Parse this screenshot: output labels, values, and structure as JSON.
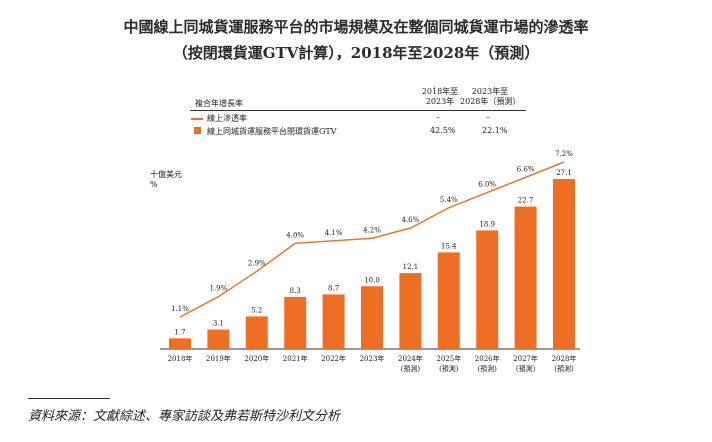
{
  "title_line1": "中國線上同城貨運服務平台的市場規模及在整個同城貨運市場的滲透率",
  "title_line2": "（按閉環貨運GTV計算），2018年至2028年（預測）",
  "table": {
    "header_label": "複合年增長率",
    "col1_header": [
      "2018年至",
      "2023年"
    ],
    "col2_header": [
      "2023年至",
      "2028年（預測）"
    ],
    "rows": [
      {
        "label": "線上滲透率",
        "v1": "–",
        "v2": "–"
      },
      {
        "label": "線上同城貨運服務平台閉環貨運GTV",
        "v1": "42.5%",
        "v2": "22.1%"
      }
    ]
  },
  "unit_label": [
    "十億美元",
    "%"
  ],
  "chart_data": {
    "type": "bar",
    "categories": [
      [
        "2018年"
      ],
      [
        "2019年"
      ],
      [
        "2020年"
      ],
      [
        "2021年"
      ],
      [
        "2022年"
      ],
      [
        "2023年"
      ],
      [
        "2024年",
        "(預測)"
      ],
      [
        "2025年",
        "(預測)"
      ],
      [
        "2026年",
        "(預測)"
      ],
      [
        "2027年",
        "(預測)"
      ],
      [
        "2028年",
        "(預測)"
      ]
    ],
    "series": [
      {
        "name": "線上同城貨運服務平台閉環貨運GTV",
        "type": "bar",
        "values": [
          1.7,
          3.1,
          5.2,
          8.3,
          8.7,
          10.0,
          12.1,
          15.4,
          18.9,
          22.7,
          27.1
        ],
        "labels": [
          "1.7",
          "3.1",
          "5.2",
          "8.3",
          "8.7",
          "10.0",
          "12.1",
          "15.4",
          "18.9",
          "22.7",
          "27.1"
        ]
      },
      {
        "name": "線上滲透率",
        "type": "line",
        "values": [
          1.1,
          1.9,
          2.9,
          4.0,
          4.1,
          4.2,
          4.6,
          5.4,
          6.0,
          6.6,
          7.2
        ],
        "labels": [
          "1.1%",
          "1.9%",
          "2.9%",
          "4.0%",
          "4.1%",
          "4.2%",
          "4.6%",
          "5.4%",
          "6.0%",
          "6.6%",
          "7.2%"
        ]
      }
    ],
    "colors": {
      "bar": "#ee6f24",
      "line": "#ee6f24"
    },
    "legend_position": "top"
  },
  "source": "資料來源：文獻綜述、專家訪談及弗若斯特沙利文分析"
}
